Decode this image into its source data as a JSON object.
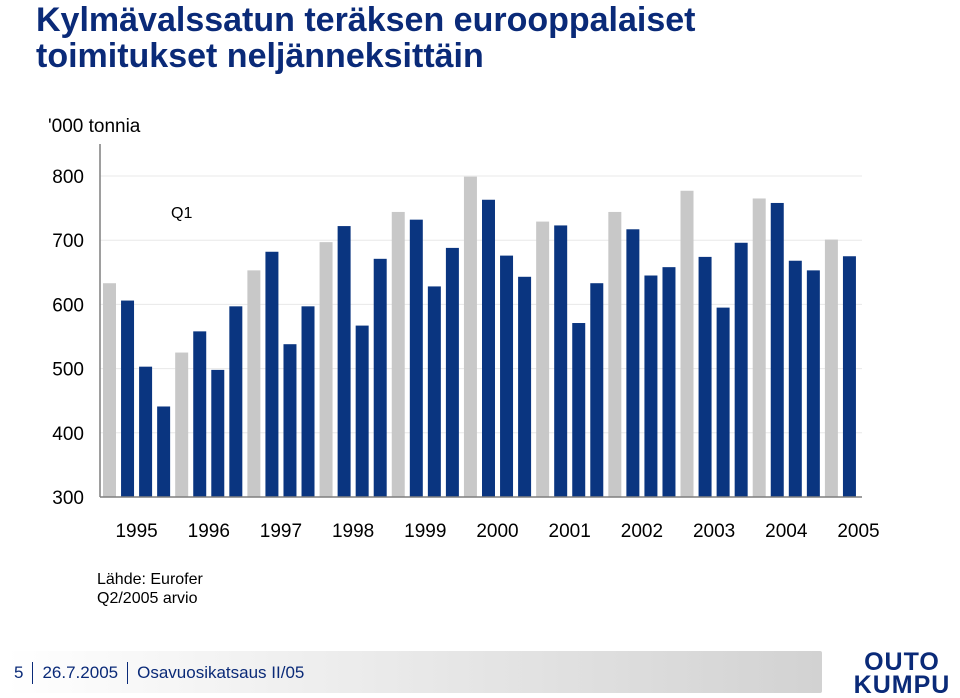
{
  "title_lines": [
    "Kylmävalssatun teräksen eurooppalaiset",
    "toimitukset neljänneksittäin"
  ],
  "unit_label": "'000 tonnia",
  "source_lines": [
    "Lähde: Eurofer",
    "Q2/2005 arvio"
  ],
  "footer": {
    "page_number": "5",
    "date": "26.7.2005",
    "presentation": "Osavuosikatsaus II/05"
  },
  "logo_text": [
    "OUTO",
    "KUMPU"
  ],
  "colors": {
    "title": "#0a2a78",
    "q1_bar": "#c8c8c8",
    "other_bar": "#0a3580",
    "axis": "#7f7f7f",
    "grid": "#e8e8e8"
  },
  "chart_data": {
    "type": "bar",
    "title": "Kylmävalssatun teräksen eurooppalaiset toimitukset neljänneksittäin",
    "ylabel": "'000 tonnia",
    "xlabel": "",
    "ylim": [
      300,
      800
    ],
    "yticks": [
      300,
      400,
      500,
      600,
      700,
      800
    ],
    "year_labels": [
      "1995",
      "1996",
      "1997",
      "1998",
      "1999",
      "2000",
      "2001",
      "2002",
      "2003",
      "2004",
      "2005"
    ],
    "categories": [
      "1995 Q1",
      "1995 Q2",
      "1995 Q3",
      "1995 Q4",
      "1996 Q1",
      "1996 Q2",
      "1996 Q3",
      "1996 Q4",
      "1997 Q1",
      "1997 Q2",
      "1997 Q3",
      "1997 Q4",
      "1998 Q1",
      "1998 Q2",
      "1998 Q3",
      "1998 Q4",
      "1999 Q1",
      "1999 Q2",
      "1999 Q3",
      "1999 Q4",
      "2000 Q1",
      "2000 Q2",
      "2000 Q3",
      "2000 Q4",
      "2001 Q1",
      "2001 Q2",
      "2001 Q3",
      "2001 Q4",
      "2002 Q1",
      "2002 Q2",
      "2002 Q3",
      "2002 Q4",
      "2003 Q1",
      "2003 Q2",
      "2003 Q3",
      "2003 Q4",
      "2004 Q1",
      "2004 Q2",
      "2004 Q3",
      "2004 Q4",
      "2005 Q1",
      "2005 Q2"
    ],
    "values": [
      633,
      606,
      503,
      441,
      525,
      558,
      498,
      597,
      653,
      682,
      538,
      597,
      697,
      722,
      567,
      671,
      744,
      732,
      628,
      688,
      799,
      763,
      676,
      643,
      729,
      723,
      571,
      633,
      744,
      717,
      645,
      658,
      777,
      674,
      595,
      696,
      765,
      758,
      668,
      653,
      701,
      675
    ],
    "q1_color_indices": [
      0,
      4,
      8,
      12,
      16,
      20,
      24,
      28,
      32,
      36,
      40
    ],
    "annotation": {
      "text": "Q1",
      "category_index": 4
    },
    "grid": true,
    "legend": "none"
  }
}
